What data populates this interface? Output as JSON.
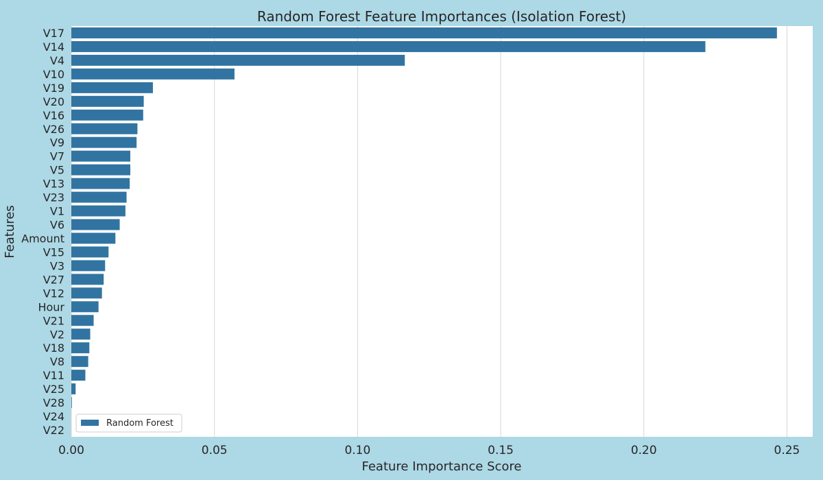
{
  "chart_data": {
    "type": "bar",
    "orientation": "horizontal",
    "title": "Random Forest Feature Importances (Isolation Forest)",
    "xlabel": "Feature Importance Score",
    "ylabel": "Features",
    "xlim": [
      0,
      0.259
    ],
    "x_ticks": [
      0.0,
      0.05,
      0.1,
      0.15,
      0.2,
      0.25
    ],
    "x_tick_labels": [
      "0.00",
      "0.05",
      "0.10",
      "0.15",
      "0.20",
      "0.25"
    ],
    "categories": [
      "V17",
      "V14",
      "V4",
      "V10",
      "V19",
      "V20",
      "V16",
      "V26",
      "V9",
      "V7",
      "V5",
      "V13",
      "V23",
      "V1",
      "V6",
      "Amount",
      "V15",
      "V3",
      "V27",
      "V12",
      "Hour",
      "V21",
      "V2",
      "V18",
      "V8",
      "V11",
      "V25",
      "V28",
      "V24",
      "V22"
    ],
    "series": [
      {
        "name": "Random Forest",
        "color": "#3274a1",
        "values": [
          0.2465,
          0.2215,
          0.1165,
          0.057,
          0.0285,
          0.0253,
          0.0251,
          0.0231,
          0.0228,
          0.0206,
          0.0206,
          0.0204,
          0.0193,
          0.0189,
          0.0169,
          0.0154,
          0.013,
          0.0118,
          0.0113,
          0.0107,
          0.0095,
          0.0078,
          0.0066,
          0.0063,
          0.0059,
          0.0049,
          0.0015,
          0.0002,
          0.0,
          0.0
        ]
      }
    ],
    "grid": "x",
    "legend_position": "lower-left"
  }
}
